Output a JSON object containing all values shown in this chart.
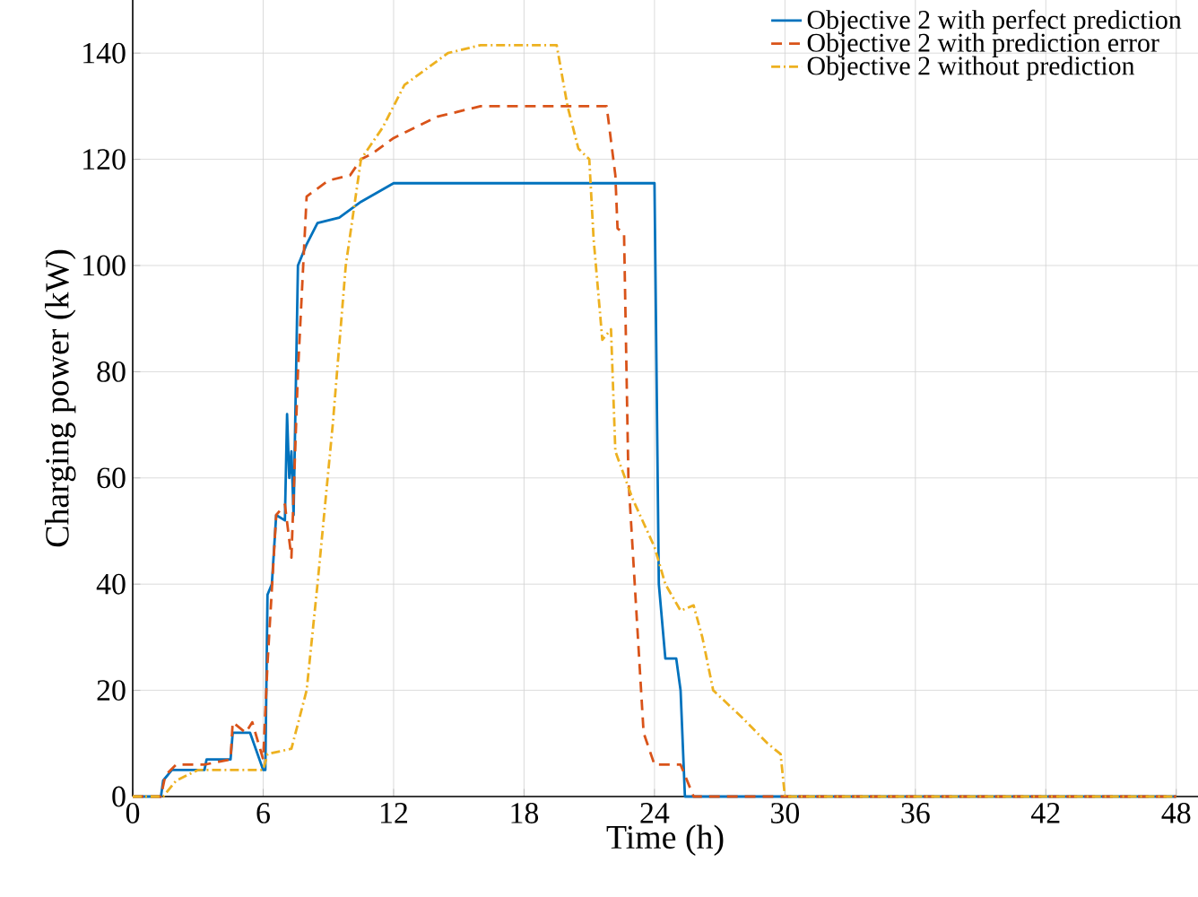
{
  "chart_data": {
    "type": "line",
    "xlabel": "Time (h)",
    "ylabel": "Charging power (kW)",
    "xlim": [
      0,
      49
    ],
    "ylim": [
      0,
      150
    ],
    "xticks": [
      0,
      6,
      12,
      18,
      24,
      30,
      36,
      42,
      48
    ],
    "yticks": [
      0,
      20,
      40,
      60,
      80,
      100,
      120,
      140
    ],
    "grid": true,
    "legend": "top right",
    "marker": "none",
    "series": [
      {
        "name": "Objective 2 with perfect prediction",
        "color": "#0072bd",
        "line_style": "solid",
        "x": [
          0,
          1.3,
          1.4,
          1.8,
          3.3,
          3.4,
          4.5,
          4.6,
          5.4,
          6.0,
          6.1,
          6.2,
          6.4,
          6.6,
          7.0,
          7.1,
          7.2,
          7.3,
          7.4,
          7.6,
          8.0,
          8.5,
          9.5,
          10.5,
          12,
          24,
          24.2,
          24.5,
          25,
          25.2,
          25.4,
          48
        ],
        "values": [
          0,
          0,
          3,
          5,
          5,
          7,
          7,
          12,
          12,
          5,
          5,
          38,
          40,
          53,
          52,
          72,
          60,
          65,
          53,
          100,
          104,
          108,
          109,
          112,
          115.5,
          115.5,
          40,
          26,
          26,
          20,
          0,
          0
        ]
      },
      {
        "name": "Objective 2 with prediction error",
        "color": "#d95319",
        "line_style": "dashed",
        "x": [
          0,
          1.3,
          1.5,
          2,
          3.3,
          4.5,
          4.6,
          5.2,
          5.5,
          6.0,
          6.2,
          6.6,
          7.0,
          7.3,
          7.6,
          8.0,
          9,
          10,
          10.5,
          11,
          12,
          14,
          16,
          21.8,
          22.2,
          22.3,
          22.6,
          22.8,
          23.5,
          24,
          25.2,
          25.8,
          48
        ],
        "values": [
          0,
          0,
          4,
          6,
          6,
          7,
          14,
          12,
          14,
          7,
          25,
          53,
          55,
          45,
          80,
          113,
          116,
          117,
          120,
          121,
          124,
          128,
          130,
          130,
          117,
          107,
          106,
          60,
          12,
          6,
          6,
          0,
          0
        ]
      },
      {
        "name": "Objective 2 without prediction",
        "color": "#edb120",
        "line_style": "dotted",
        "x": [
          0,
          1.4,
          2,
          3,
          6,
          6.2,
          7.3,
          8,
          8.5,
          9.2,
          9.8,
          10.5,
          11.5,
          12.5,
          14.5,
          16,
          19.5,
          20,
          20.5,
          21,
          21.2,
          21.6,
          22,
          22.2,
          23,
          24,
          24.5,
          25.2,
          25.8,
          26.2,
          26.7,
          28,
          29.2,
          29.8,
          30,
          48
        ],
        "values": [
          0,
          0,
          3,
          5,
          5,
          8,
          9,
          20,
          40,
          70,
          100,
          120,
          126,
          134,
          140,
          141.5,
          141.5,
          130,
          122,
          120,
          105,
          86,
          88,
          65,
          56,
          47,
          40,
          35,
          36,
          30,
          20,
          15,
          10,
          8,
          0,
          0
        ]
      }
    ]
  }
}
